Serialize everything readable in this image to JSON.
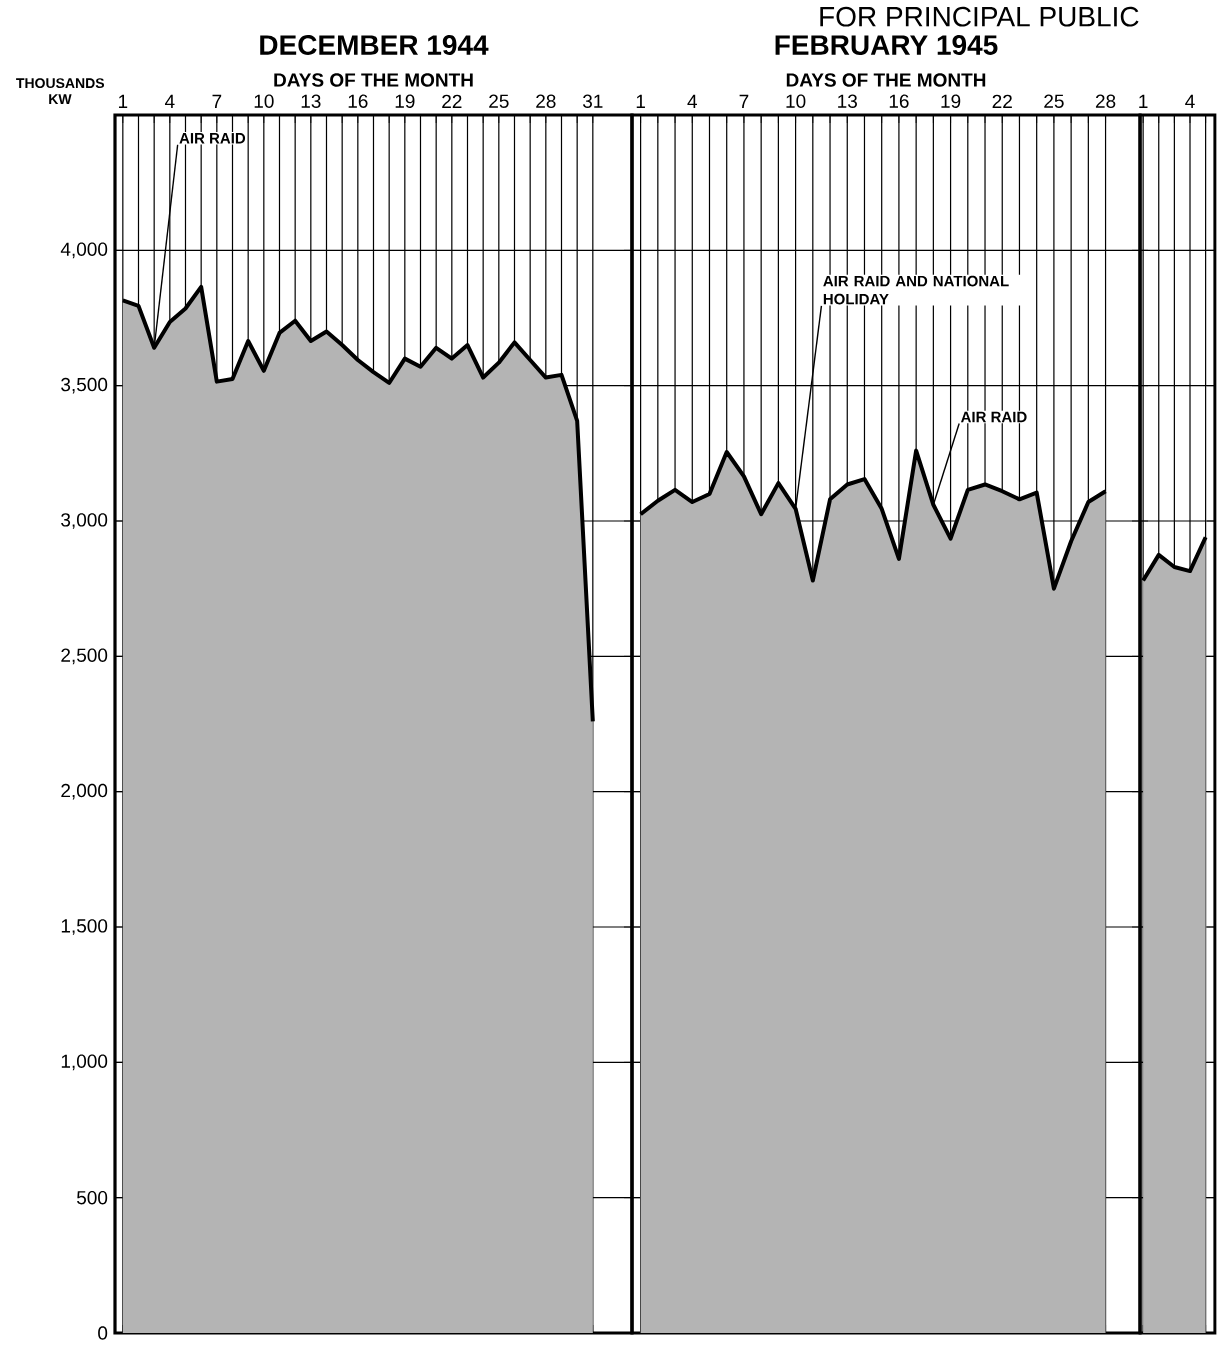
{
  "chart_data": [
    {
      "type": "area",
      "title": "DECEMBER 1944",
      "xlabel": "DAYS OF THE MONTH",
      "ylabel": "THOUSANDS KW",
      "x": [
        1,
        2,
        3,
        4,
        5,
        6,
        7,
        8,
        9,
        10,
        11,
        12,
        13,
        14,
        15,
        16,
        17,
        18,
        19,
        20,
        21,
        22,
        23,
        24,
        25,
        26,
        27,
        28,
        29,
        30,
        31
      ],
      "values": [
        3815,
        3795,
        3640,
        3735,
        3785,
        3865,
        3515,
        3525,
        3665,
        3555,
        3695,
        3740,
        3665,
        3700,
        3650,
        3595,
        3550,
        3510,
        3600,
        3570,
        3640,
        3600,
        3650,
        3530,
        3585,
        3660,
        3595,
        3530,
        3540,
        3370,
        2260
      ],
      "color": "#b4b4b4",
      "xlim": [
        0.5,
        33.5
      ],
      "ylim": [
        0,
        4500
      ],
      "xticks": [
        1,
        {
          "value": 2,
          "label": null
        },
        {
          "value": 3,
          "label": null
        },
        4,
        {
          "value": 5,
          "label": null
        },
        {
          "value": 6,
          "label": null
        },
        7,
        {
          "value": 8,
          "label": null
        },
        {
          "value": 9,
          "label": null
        },
        10,
        {
          "value": 11,
          "label": null
        },
        {
          "value": 12,
          "label": null
        },
        13,
        {
          "value": 14,
          "label": null
        },
        {
          "value": 15,
          "label": null
        },
        16,
        {
          "value": 17,
          "label": null
        },
        {
          "value": 18,
          "label": null
        },
        19,
        {
          "value": 20,
          "label": null
        },
        {
          "value": 21,
          "label": null
        },
        22,
        {
          "value": 23,
          "label": null
        },
        {
          "value": 24,
          "label": null
        },
        25,
        {
          "value": 26,
          "label": null
        },
        {
          "value": 27,
          "label": null
        },
        28,
        {
          "value": 29,
          "label": null
        },
        {
          "value": 30,
          "label": null
        },
        31
      ],
      "yticks": [
        0,
        500,
        {
          "value": 1000,
          "label": "1,000"
        },
        {
          "value": 1500,
          "label": "1,500"
        },
        {
          "value": 2000,
          "label": "2,000"
        },
        {
          "value": 2500,
          "label": "2,500"
        },
        {
          "value": 3000,
          "label": "3,000"
        },
        {
          "value": 3500,
          "label": "3,500"
        },
        {
          "value": 4000,
          "label": "4,000"
        }
      ],
      "grid": true,
      "annotations": [
        {
          "text": "AIR RAID",
          "x": 3,
          "y": 3640
        }
      ]
    },
    {
      "type": "area",
      "title": "FEBRUARY 1945",
      "xlabel": "DAYS OF THE MONTH",
      "x": [
        1,
        2,
        3,
        4,
        5,
        6,
        7,
        8,
        9,
        10,
        11,
        12,
        13,
        14,
        15,
        16,
        17,
        18,
        19,
        20,
        21,
        22,
        23,
        24,
        25,
        26,
        27,
        28
      ],
      "values": [
        3025,
        3075,
        3115,
        3070,
        3100,
        3255,
        3165,
        3025,
        3140,
        3045,
        2780,
        3080,
        3135,
        3155,
        3045,
        2860,
        3260,
        3060,
        2935,
        3115,
        3135,
        3110,
        3080,
        3105,
        2750,
        2925,
        3070,
        3110
      ],
      "color": "#b4b4b4",
      "xlim": [
        0.5,
        30
      ],
      "ylim": [
        0,
        4500
      ],
      "xticks": [
        1,
        {
          "value": 2,
          "label": null
        },
        {
          "value": 3,
          "label": null
        },
        4,
        {
          "value": 5,
          "label": null
        },
        {
          "value": 6,
          "label": null
        },
        7,
        {
          "value": 8,
          "label": null
        },
        {
          "value": 9,
          "label": null
        },
        10,
        {
          "value": 11,
          "label": null
        },
        {
          "value": 12,
          "label": null
        },
        13,
        {
          "value": 14,
          "label": null
        },
        {
          "value": 15,
          "label": null
        },
        16,
        {
          "value": 17,
          "label": null
        },
        {
          "value": 18,
          "label": null
        },
        19,
        {
          "value": 20,
          "label": null
        },
        {
          "value": 21,
          "label": null
        },
        22,
        {
          "value": 23,
          "label": null
        },
        {
          "value": 24,
          "label": null
        },
        25,
        {
          "value": 26,
          "label": null
        },
        {
          "value": 27,
          "label": null
        },
        28
      ],
      "yticks": [
        0,
        500,
        1000,
        1500,
        2000,
        2500,
        3000,
        3500,
        4000
      ],
      "grid": true,
      "tick_labels": "x",
      "annotations": [
        {
          "text": "AIR RAID AND NATIONAL HOLIDAY",
          "x": 10,
          "y": 3045
        },
        {
          "text": "AIR RAID",
          "x": 18,
          "y": 3060
        },
        "FOR PRINCIPAL PUBLIC"
      ]
    },
    {
      "type": "area",
      "x": [
        1,
        2,
        3,
        4,
        5
      ],
      "values": [
        2780,
        2875,
        2830,
        2815,
        2940
      ],
      "color": "#b4b4b4",
      "xlim": [
        0.8,
        5.6
      ],
      "ylim": [
        0,
        4500
      ],
      "xticks": [
        1,
        {
          "value": 2,
          "label": null
        },
        {
          "value": 3,
          "label": null
        },
        4,
        {
          "value": 5,
          "label": null
        }
      ],
      "yticks": [
        0,
        500,
        1000,
        1500,
        2000,
        2500,
        3000,
        3500,
        4000
      ],
      "grid": true,
      "tick_labels": "x"
    }
  ]
}
